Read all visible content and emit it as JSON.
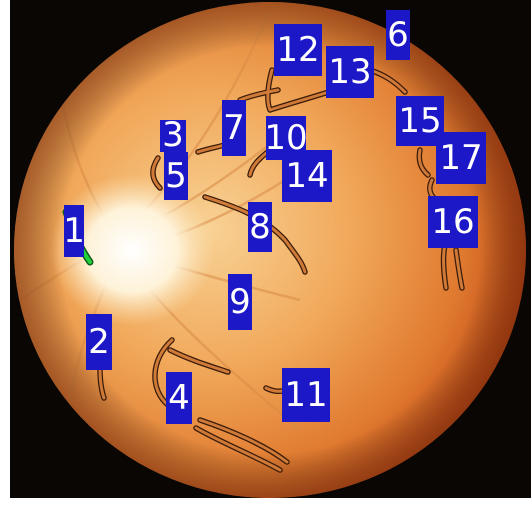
{
  "image": {
    "subject": "fundus-photograph",
    "colors": {
      "background": "#0a0604",
      "fundus_edge": "#c4541a",
      "fundus_mid": "#ef9b4c",
      "fundus_center": "#f7cd8f",
      "optic_disc": "#fffdf5",
      "label_box": "#1c18c8",
      "label_text": "#ffffff",
      "trace_fill": "#cf7a38",
      "trace_outline": "#3a1b08",
      "highlight_trace": "#22d23a"
    }
  },
  "markers": [
    {
      "id": "1",
      "text": "1"
    },
    {
      "id": "2",
      "text": "2"
    },
    {
      "id": "3",
      "text": "3"
    },
    {
      "id": "4",
      "text": "4"
    },
    {
      "id": "5",
      "text": "5"
    },
    {
      "id": "6",
      "text": "6"
    },
    {
      "id": "7",
      "text": "7"
    },
    {
      "id": "8",
      "text": "8"
    },
    {
      "id": "9",
      "text": "9"
    },
    {
      "id": "10",
      "text": "10"
    },
    {
      "id": "11",
      "text": "11"
    },
    {
      "id": "12",
      "text": "12"
    },
    {
      "id": "13",
      "text": "13"
    },
    {
      "id": "14",
      "text": "14"
    },
    {
      "id": "15",
      "text": "15"
    },
    {
      "id": "16",
      "text": "16"
    },
    {
      "id": "17",
      "text": "17"
    }
  ]
}
